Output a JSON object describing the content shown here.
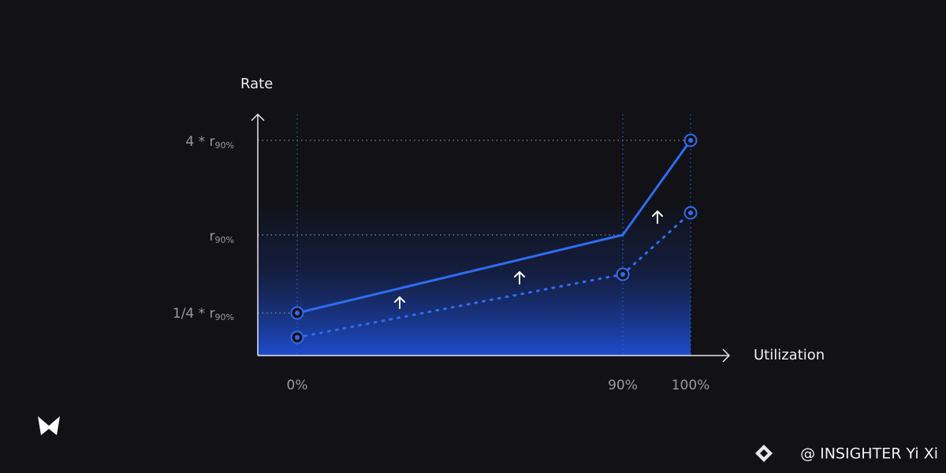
{
  "axes": {
    "y_label": "Rate",
    "x_label": "Utilization"
  },
  "x_ticks": [
    "0%",
    "90%",
    "100%"
  ],
  "y_ticks": [
    {
      "prefix": "4 * ",
      "base": "r",
      "sub": "90%"
    },
    {
      "base": "r",
      "sub": "90%"
    },
    {
      "prefix": "1/4 * ",
      "base": "r",
      "sub": "90%"
    }
  ],
  "watermark": "@ INSIGHTER Yi Xi"
}
